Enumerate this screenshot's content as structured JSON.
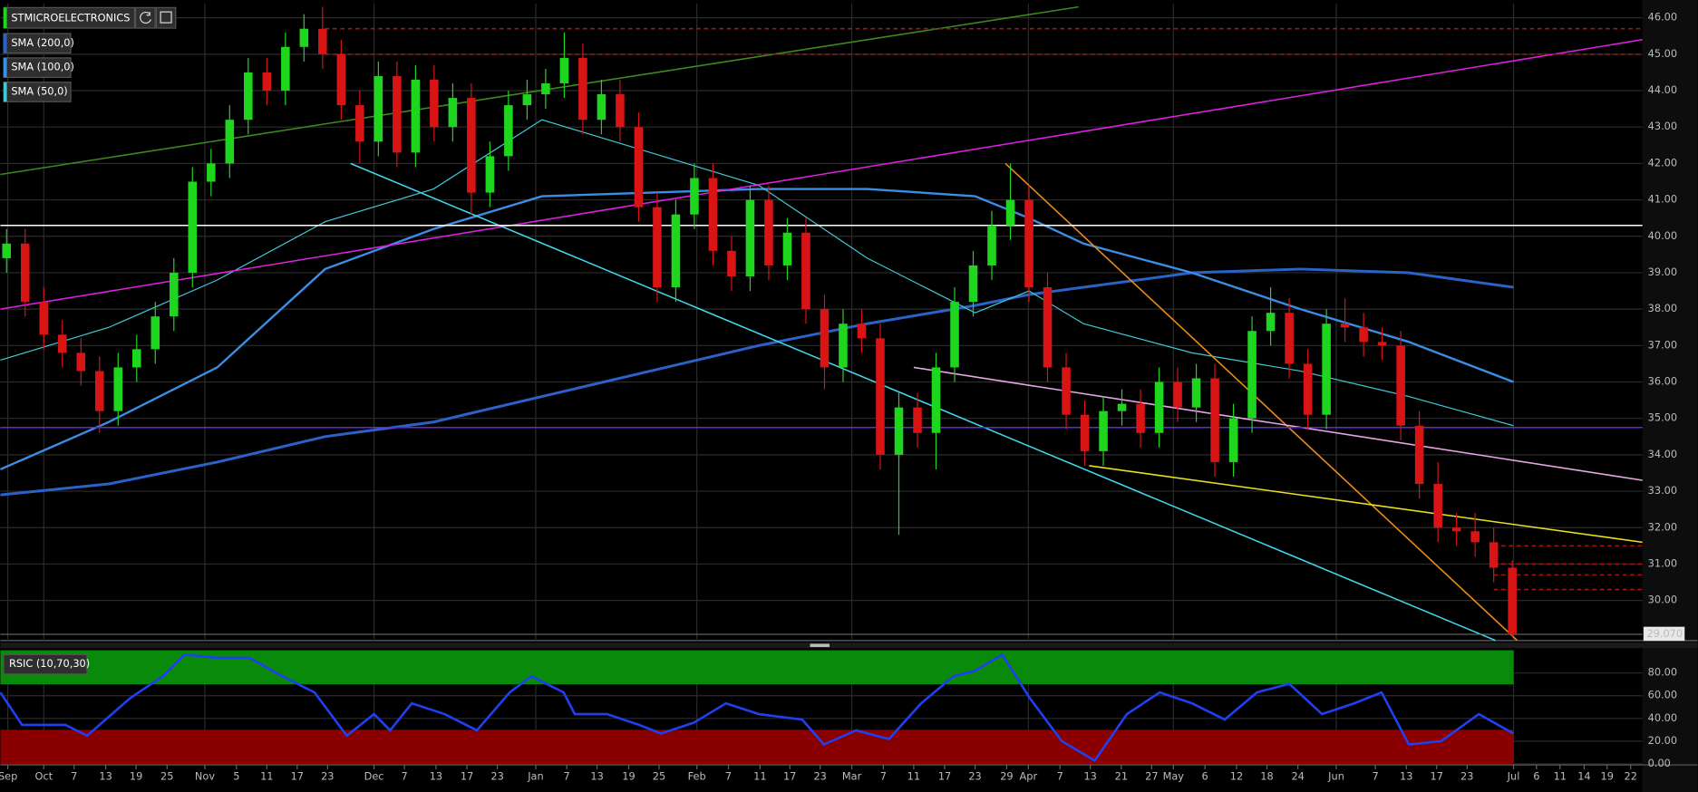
{
  "chart_data": [
    {
      "type": "candlestick",
      "title": "STMICROELECTRONICS",
      "x": [
        1,
        4,
        7,
        10,
        13,
        16,
        19,
        22,
        25,
        28,
        31,
        34,
        37,
        40,
        43,
        46,
        49,
        52,
        55,
        58,
        61,
        64,
        67,
        70,
        73,
        76,
        79,
        82,
        85,
        88,
        91,
        94,
        97,
        100,
        103,
        106,
        109,
        112,
        115,
        118,
        121,
        124,
        127,
        130,
        133,
        136,
        139,
        142,
        145,
        148,
        151,
        154,
        157,
        160,
        163,
        166,
        169,
        172,
        175,
        178,
        181,
        184,
        187,
        190,
        193,
        196,
        199,
        202,
        205,
        208,
        211,
        214,
        217,
        220,
        223,
        226,
        229,
        232,
        235,
        238,
        241,
        244
      ],
      "open": [
        39.4,
        39.8,
        38.2,
        37.3,
        36.8,
        36.3,
        35.2,
        36.4,
        36.9,
        37.8,
        39.0,
        41.5,
        42.0,
        43.2,
        44.5,
        44.0,
        45.2,
        45.7,
        45.0,
        43.6,
        42.6,
        44.4,
        42.3,
        44.3,
        43.0,
        43.8,
        41.2,
        42.2,
        43.6,
        43.9,
        44.2,
        44.9,
        43.2,
        43.9,
        43.0,
        40.8,
        38.6,
        40.6,
        41.6,
        39.6,
        38.9,
        41.0,
        39.2,
        40.1,
        38.0,
        36.4,
        37.6,
        37.2,
        34.0,
        35.3,
        34.6,
        36.4,
        38.2,
        39.2,
        40.3,
        41.0,
        38.6,
        36.4,
        35.1,
        34.1,
        35.2,
        35.4,
        34.6,
        36.0,
        35.3,
        36.1,
        33.8,
        35.0,
        37.4,
        37.9,
        36.5,
        35.1,
        37.6,
        37.5,
        37.1,
        37.0,
        34.8,
        33.2,
        32.0,
        31.9,
        31.6,
        30.9
      ],
      "high": [
        40.2,
        40.2,
        38.6,
        37.7,
        37.2,
        36.7,
        36.8,
        37.3,
        38.2,
        39.4,
        41.9,
        42.4,
        43.6,
        44.9,
        44.9,
        45.6,
        46.1,
        46.3,
        45.4,
        44.0,
        44.8,
        44.8,
        44.7,
        44.7,
        44.2,
        44.2,
        42.6,
        44.0,
        44.3,
        44.6,
        45.6,
        45.3,
        44.3,
        44.3,
        43.4,
        41.2,
        41.0,
        42.0,
        42.0,
        40.0,
        41.4,
        41.4,
        40.5,
        40.5,
        38.4,
        38.0,
        38.0,
        37.6,
        35.7,
        35.7,
        36.8,
        38.6,
        39.6,
        40.7,
        42.0,
        41.4,
        39.0,
        36.8,
        35.5,
        35.6,
        35.8,
        35.8,
        36.4,
        36.4,
        36.5,
        36.5,
        35.4,
        37.8,
        38.6,
        38.3,
        36.9,
        38.0,
        38.3,
        37.9,
        37.5,
        37.4,
        35.2,
        33.8,
        32.4,
        32.4,
        32.0,
        31.1
      ],
      "low": [
        39.0,
        37.8,
        36.9,
        36.4,
        35.9,
        34.6,
        34.8,
        36.0,
        36.5,
        37.4,
        38.6,
        41.1,
        41.6,
        42.8,
        43.6,
        43.6,
        44.8,
        44.6,
        43.2,
        42.0,
        42.2,
        41.9,
        41.9,
        42.6,
        42.6,
        40.6,
        40.8,
        41.8,
        43.2,
        43.5,
        43.8,
        42.8,
        42.8,
        42.6,
        40.4,
        38.2,
        38.2,
        40.2,
        39.2,
        38.5,
        38.5,
        38.8,
        38.8,
        37.6,
        35.8,
        36.0,
        36.8,
        33.6,
        31.8,
        34.2,
        33.6,
        36.0,
        37.8,
        38.8,
        39.9,
        38.2,
        36.0,
        34.7,
        33.7,
        33.7,
        34.8,
        34.2,
        34.2,
        34.9,
        34.9,
        33.4,
        33.4,
        34.6,
        37.0,
        36.1,
        34.7,
        34.7,
        37.1,
        36.7,
        36.6,
        34.4,
        32.8,
        31.6,
        31.5,
        31.2,
        30.5,
        29.0
      ],
      "close": [
        39.8,
        38.2,
        37.3,
        36.8,
        36.3,
        35.2,
        36.4,
        36.9,
        37.8,
        39.0,
        41.5,
        42.0,
        43.2,
        44.5,
        44.0,
        45.2,
        45.7,
        45.0,
        43.6,
        42.6,
        44.4,
        42.3,
        44.3,
        43.0,
        43.8,
        41.2,
        42.2,
        43.6,
        43.9,
        44.2,
        44.9,
        43.2,
        43.9,
        43.0,
        40.8,
        38.6,
        40.6,
        41.6,
        39.6,
        38.9,
        41.0,
        39.2,
        40.1,
        38.0,
        36.4,
        37.6,
        37.2,
        34.0,
        35.3,
        34.6,
        36.4,
        38.2,
        39.2,
        40.3,
        41.0,
        38.6,
        36.4,
        35.1,
        34.1,
        35.2,
        35.4,
        34.6,
        36.0,
        35.3,
        36.1,
        33.8,
        35.0,
        37.4,
        37.9,
        36.5,
        35.1,
        37.6,
        37.5,
        37.1,
        37.0,
        34.8,
        33.2,
        32.0,
        31.9,
        31.6,
        30.9,
        29.07
      ],
      "up_color": "#1fd61f",
      "down_color": "#d81414",
      "title_color": "#1fd61f",
      "xlim": [
        0,
        265
      ],
      "ylim": [
        28.9,
        46.4
      ],
      "yticks": [
        {
          "value": 30,
          "label": "30.00"
        },
        {
          "value": 31,
          "label": "31.00"
        },
        {
          "value": 32,
          "label": "32.00"
        },
        {
          "value": 33,
          "label": "33.00"
        },
        {
          "value": 34,
          "label": "34.00"
        },
        {
          "value": 35,
          "label": "35.00"
        },
        {
          "value": 36,
          "label": "36.00"
        },
        {
          "value": 37,
          "label": "37.00"
        },
        {
          "value": 38,
          "label": "38.00"
        },
        {
          "value": 39,
          "label": "39.00"
        },
        {
          "value": 40,
          "label": "40.00"
        },
        {
          "value": 41,
          "label": "41.00"
        },
        {
          "value": 42,
          "label": "42.00"
        },
        {
          "value": 43,
          "label": "43.00"
        },
        {
          "value": 44,
          "label": "44.00"
        },
        {
          "value": 45,
          "label": "45.00"
        },
        {
          "value": 46,
          "label": "46.00"
        }
      ],
      "grid": true,
      "last_price": {
        "value": 29.07,
        "label": "29.070"
      },
      "overlays": [
        {
          "name": "SMA (200,0)",
          "color": "#2a62c8",
          "width": 2.5,
          "x": [
            0,
            17.5,
            35,
            52.4,
            69.9,
            87.4,
            104.9,
            122.4,
            139.9,
            157.3,
            166,
            174.8,
            192.3,
            209.8,
            227.3,
            244.2
          ],
          "values": [
            32.9,
            33.2,
            33.8,
            34.5,
            34.9,
            35.6,
            36.3,
            37.0,
            37.6,
            38.1,
            38.4,
            38.6,
            39.0,
            39.1,
            39.0,
            38.6
          ]
        },
        {
          "name": "SMA (100,0)",
          "color": "#3a8ee6",
          "width": 2,
          "x": [
            0,
            17.5,
            35,
            52.4,
            69.9,
            87.4,
            104.9,
            122.4,
            139.9,
            157.3,
            166,
            174.8,
            192.3,
            209.8,
            227.3,
            244.2
          ],
          "values": [
            33.6,
            34.9,
            36.4,
            39.1,
            40.2,
            41.1,
            41.2,
            41.3,
            41.3,
            41.1,
            40.5,
            39.8,
            39.0,
            38.0,
            37.1,
            36.0
          ]
        },
        {
          "name": "SMA (50,0)",
          "color": "#3fc9d6",
          "width": 1,
          "x": [
            0,
            17.5,
            35,
            52.4,
            69.9,
            87.4,
            104.9,
            122.4,
            139.9,
            157.3,
            166,
            174.8,
            192.3,
            209.8,
            227.3,
            244.2
          ],
          "values": [
            36.6,
            37.5,
            38.8,
            40.4,
            41.3,
            43.2,
            42.3,
            41.4,
            39.4,
            37.9,
            38.5,
            37.6,
            36.8,
            36.3,
            35.6,
            34.8
          ]
        }
      ],
      "trendlines": [
        {
          "color": "#3d8a1e",
          "x": [
            0,
            174
          ],
          "values": [
            41.7,
            46.3
          ]
        },
        {
          "color": "#e020e0",
          "x": [
            0,
            265
          ],
          "values": [
            38.0,
            45.4
          ]
        },
        {
          "color": "#40d8e8",
          "x": [
            56.5,
            241.3
          ],
          "values": [
            42.0,
            28.9
          ]
        },
        {
          "color": "#f08c1a",
          "x": [
            162.2,
            244.8
          ],
          "values": [
            42.0,
            28.9
          ]
        },
        {
          "color": "#e8a8e8",
          "x": [
            147.4,
            265
          ],
          "values": [
            36.4,
            33.3
          ]
        },
        {
          "color": "#e8e020",
          "x": [
            175.7,
            265
          ],
          "values": [
            33.7,
            31.6
          ]
        },
        {
          "color": "#ffffff",
          "x": [
            0,
            265
          ],
          "values": [
            40.3,
            40.3
          ]
        },
        {
          "color": "#6a24e8",
          "x": [
            0,
            265
          ],
          "values": [
            34.75,
            34.75
          ]
        },
        {
          "color": "#a01818",
          "dashed": true,
          "x": [
            52.4,
            265
          ],
          "values": [
            45.7,
            45.7
          ]
        },
        {
          "color": "#a01818",
          "dashed": true,
          "x": [
            52.4,
            265
          ],
          "values": [
            45.0,
            45.0
          ]
        },
        {
          "color": "#a01818",
          "dashed": true,
          "x": [
            241,
            265
          ],
          "values": [
            31.5,
            31.5
          ]
        },
        {
          "color": "#a01818",
          "dashed": true,
          "x": [
            241,
            265
          ],
          "values": [
            31.0,
            31.0
          ]
        },
        {
          "color": "#a01818",
          "dashed": true,
          "x": [
            241,
            265
          ],
          "values": [
            30.7,
            30.7
          ]
        },
        {
          "color": "#a01818",
          "dashed": true,
          "x": [
            241,
            265
          ],
          "values": [
            30.3,
            30.3
          ]
        }
      ]
    },
    {
      "type": "line",
      "title": "RSIC (10,70,30)",
      "x": [
        0,
        3.5,
        10.5,
        14,
        21,
        26.2,
        29.7,
        35,
        40.2,
        45.5,
        50.7,
        55.9,
        60.3,
        62.9,
        66.4,
        71.7,
        76.9,
        82.2,
        85.7,
        90.9,
        92.7,
        97.9,
        103.1,
        106.6,
        111.9,
        117.1,
        122.4,
        129.4,
        132.9,
        138.1,
        143.4,
        148.6,
        153.8,
        157.3,
        161.7,
        166.1,
        171.3,
        176.6,
        181.8,
        187.1,
        192.3,
        197.6,
        202.8,
        208,
        213.3,
        218.5,
        222.9,
        227.3,
        232.5,
        238.6,
        244.2
      ],
      "series": [
        {
          "color": "#1f3ff0",
          "values": [
            62.9,
            34.3,
            34.3,
            24.8,
            58.1,
            77.1,
            96.2,
            93.3,
            93.3,
            77.1,
            62.9,
            24.8,
            43.8,
            29.5,
            53.3,
            43.8,
            29.5,
            62.9,
            77.1,
            62.9,
            43.8,
            43.8,
            34.3,
            26.7,
            36.2,
            53.3,
            43.8,
            39,
            17.1,
            29.5,
            21.9,
            53.3,
            77.1,
            81.9,
            96.2,
            58.1,
            20,
            2.9,
            43.8,
            62.9,
            53.3,
            39,
            62.9,
            70.5,
            43.8,
            53.3,
            62.9,
            17.1,
            20,
            43.8,
            26.7
          ]
        }
      ],
      "zones": [
        {
          "range": [
            70,
            100
          ],
          "x": [
            0,
            244.2
          ],
          "color": "#0a8a0a"
        },
        {
          "range": [
            0,
            30
          ],
          "x": [
            0,
            244.2
          ],
          "color": "#8a0000"
        }
      ],
      "xlim": [
        0,
        265
      ],
      "ylim": [
        0,
        100
      ],
      "yticks": [
        {
          "value": 0,
          "label": "0.00"
        },
        {
          "value": 20,
          "label": "20.00"
        },
        {
          "value": 40,
          "label": "40.00"
        },
        {
          "value": 60,
          "label": "60.00"
        },
        {
          "value": 80,
          "label": "80.00"
        }
      ],
      "xticks": [
        {
          "value": 1.2,
          "label": "Sep"
        },
        {
          "value": 7,
          "label": "Oct"
        },
        {
          "value": 11.9,
          "label": "7"
        },
        {
          "value": 17,
          "label": "13"
        },
        {
          "value": 21.9,
          "label": "19"
        },
        {
          "value": 26.9,
          "label": "25"
        },
        {
          "value": 33,
          "label": "Nov"
        },
        {
          "value": 38.1,
          "label": "5"
        },
        {
          "value": 43,
          "label": "11"
        },
        {
          "value": 47.9,
          "label": "17"
        },
        {
          "value": 52.8,
          "label": "23"
        },
        {
          "value": 60.3,
          "label": "Dec"
        },
        {
          "value": 65.2,
          "label": "7"
        },
        {
          "value": 70.3,
          "label": "13"
        },
        {
          "value": 75.3,
          "label": "17"
        },
        {
          "value": 80.2,
          "label": "23"
        },
        {
          "value": 86.4,
          "label": "Jan"
        },
        {
          "value": 91.4,
          "label": "7"
        },
        {
          "value": 96.3,
          "label": "13"
        },
        {
          "value": 101.4,
          "label": "19"
        },
        {
          "value": 106.3,
          "label": "25"
        },
        {
          "value": 112.4,
          "label": "Feb"
        },
        {
          "value": 117.5,
          "label": "7"
        },
        {
          "value": 122.6,
          "label": "11"
        },
        {
          "value": 127.4,
          "label": "17"
        },
        {
          "value": 132.3,
          "label": "23"
        },
        {
          "value": 137.4,
          "label": "Mar"
        },
        {
          "value": 142.5,
          "label": "7"
        },
        {
          "value": 147.4,
          "label": "11"
        },
        {
          "value": 152.4,
          "label": "17"
        },
        {
          "value": 157.3,
          "label": "23"
        },
        {
          "value": 162.4,
          "label": "29"
        },
        {
          "value": 165.9,
          "label": "Apr"
        },
        {
          "value": 171,
          "label": "7"
        },
        {
          "value": 175.9,
          "label": "13"
        },
        {
          "value": 180.9,
          "label": "21"
        },
        {
          "value": 185.8,
          "label": "27"
        },
        {
          "value": 189.3,
          "label": "May"
        },
        {
          "value": 194.4,
          "label": "6"
        },
        {
          "value": 199.5,
          "label": "12"
        },
        {
          "value": 204.4,
          "label": "18"
        },
        {
          "value": 209.4,
          "label": "24"
        },
        {
          "value": 215.6,
          "label": "Jun"
        },
        {
          "value": 221.9,
          "label": "7"
        },
        {
          "value": 226.9,
          "label": "13"
        },
        {
          "value": 231.8,
          "label": "17"
        },
        {
          "value": 236.7,
          "label": "23"
        },
        {
          "value": 244.2,
          "label": "Jul"
        },
        {
          "value": 247.9,
          "label": "6"
        },
        {
          "value": 251.7,
          "label": "11"
        },
        {
          "value": 255.6,
          "label": "14"
        },
        {
          "value": 259.3,
          "label": "19"
        },
        {
          "value": 263.1,
          "label": "22"
        }
      ]
    }
  ]
}
